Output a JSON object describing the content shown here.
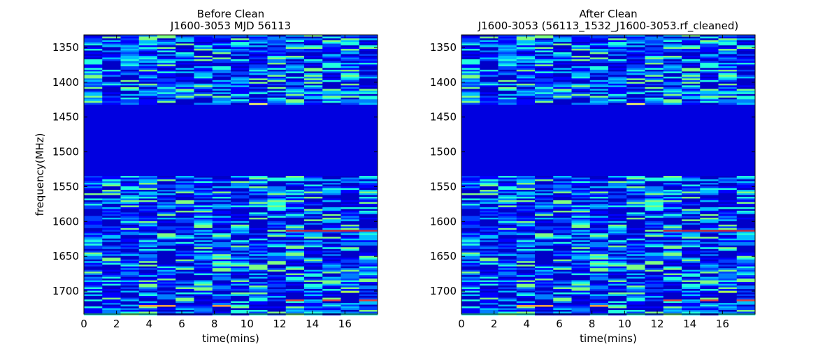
{
  "chart_data": [
    {
      "type": "heatmap",
      "title_line1": "Before Clean",
      "title_line2": "J1600-3053 MJD 56113",
      "xlabel": "time(mins)",
      "ylabel": "frequency(MHz)",
      "xlim": [
        0,
        18
      ],
      "ylim": [
        1733,
        1332
      ],
      "xticks": [
        0,
        2,
        4,
        6,
        8,
        10,
        12,
        14,
        16
      ],
      "yticks": [
        1350,
        1400,
        1450,
        1500,
        1550,
        1600,
        1650,
        1700
      ],
      "time_columns": 16,
      "masked_band_mhz": [
        1434,
        1533
      ],
      "masked_color": "#0000e0",
      "highlight_rows": [
        {
          "freq": 1612,
          "cols": [
            11,
            12,
            13,
            14,
            15
          ],
          "color": "#c02040"
        },
        {
          "freq": 1712,
          "cols": [
            11,
            13,
            15
          ],
          "color": "#e04040"
        },
        {
          "freq": 1720,
          "cols": [
            3,
            4,
            7
          ],
          "color": "#ffa040"
        },
        {
          "freq": 1430,
          "cols": [
            9
          ],
          "color": "#ffff60"
        },
        {
          "freq": 1700,
          "cols": [
            14
          ],
          "color": "#b0ff50"
        }
      ],
      "colormap": [
        "#0000c8",
        "#0000ff",
        "#0040ff",
        "#0080ff",
        "#00c0ff",
        "#20ffe0",
        "#80ff80"
      ]
    },
    {
      "type": "heatmap",
      "title_line1": "After Clean",
      "title_line2": "J1600-3053  (56113_1532_J1600-3053.rf_cleaned)",
      "xlabel": "time(mins)",
      "ylabel": "",
      "xlim": [
        0,
        18
      ],
      "ylim": [
        1733,
        1332
      ],
      "xticks": [
        0,
        2,
        4,
        6,
        8,
        10,
        12,
        14,
        16
      ],
      "yticks": [
        1350,
        1400,
        1450,
        1500,
        1550,
        1600,
        1650,
        1700
      ],
      "time_columns": 16,
      "masked_band_mhz": [
        1434,
        1533
      ],
      "masked_color": "#0000e0",
      "highlight_rows": [
        {
          "freq": 1612,
          "cols": [
            11,
            12,
            13,
            14,
            15
          ],
          "color": "#c02040"
        },
        {
          "freq": 1712,
          "cols": [
            11,
            13,
            15
          ],
          "color": "#e04040"
        },
        {
          "freq": 1720,
          "cols": [
            3,
            4,
            7
          ],
          "color": "#ffa040"
        },
        {
          "freq": 1430,
          "cols": [
            9
          ],
          "color": "#ffff60"
        },
        {
          "freq": 1700,
          "cols": [
            14
          ],
          "color": "#b0ff50"
        }
      ],
      "colormap": [
        "#0000c8",
        "#0000ff",
        "#0040ff",
        "#0080ff",
        "#00c0ff",
        "#20ffe0",
        "#80ff80"
      ]
    }
  ]
}
